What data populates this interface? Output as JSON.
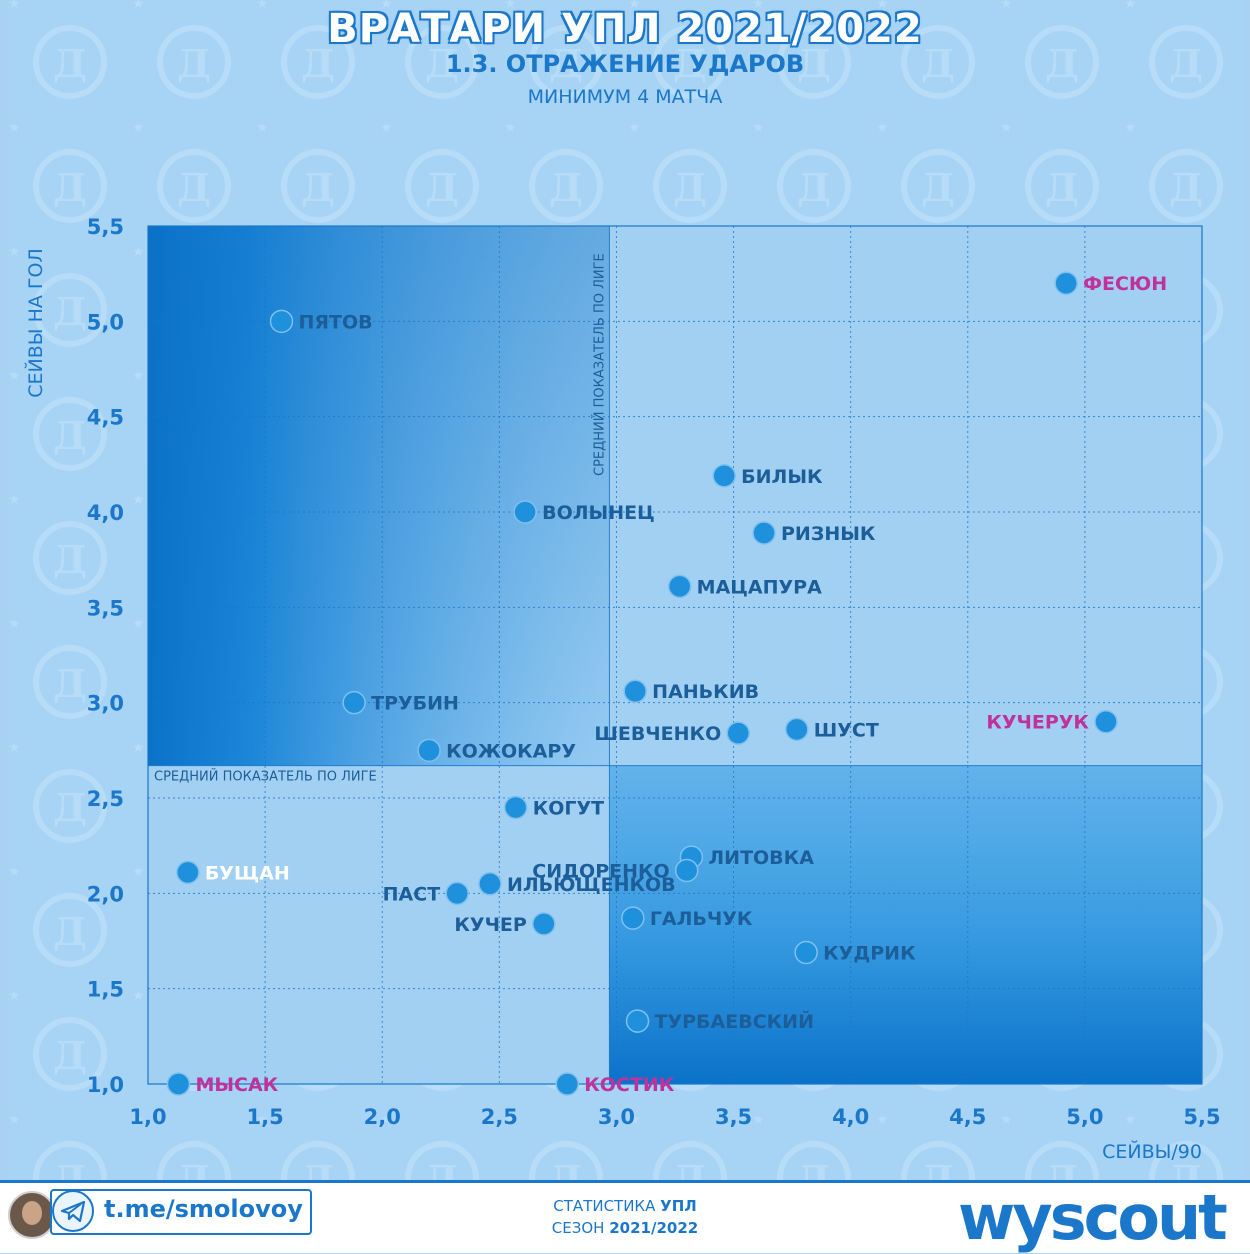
{
  "header": {
    "title": "ВРАТАРИ УПЛ 2021/2022",
    "subtitle": "1.3. ОТРАЖЕНИЕ УДАРОВ",
    "note": "МИНИМУМ 4 МАТЧА"
  },
  "colors": {
    "accent": "#1b77c9",
    "point": "#1e90dc",
    "label_default": "#1b5e99",
    "label_highlight": "#c0329b",
    "label_light": "#ffffff",
    "background": "#a7d3f4"
  },
  "chart_data": {
    "type": "scatter",
    "xlabel": "СЕЙВЫ/90",
    "ylabel": "СЕЙВЫ НА ГОЛ",
    "xlim": [
      1.0,
      5.5
    ],
    "ylim": [
      1.0,
      5.5
    ],
    "xticks": [
      "1,0",
      "1,5",
      "2,0",
      "2,5",
      "3,0",
      "3,5",
      "4,0",
      "4,5",
      "5,0",
      "5,5"
    ],
    "yticks": [
      "1,0",
      "1,5",
      "2,0",
      "2,5",
      "3,0",
      "3,5",
      "4,0",
      "4,5",
      "5,0",
      "5,5"
    ],
    "grid": true,
    "league_average": {
      "x": 2.97,
      "y": 2.67,
      "x_label": "СРЕДНИЙ ПОКАЗАТЕЛЬ ПО ЛИГЕ",
      "y_label": "СРЕДНИЙ ПОКАЗАТЕЛЬ ПО ЛИГЕ"
    },
    "points": [
      {
        "name": "ФЕСЮН",
        "x": 4.92,
        "y": 5.2,
        "style": "highlight",
        "side": "right"
      },
      {
        "name": "ПЯТОВ",
        "x": 1.57,
        "y": 5.0,
        "style": "default",
        "side": "right"
      },
      {
        "name": "БИЛЫК",
        "x": 3.46,
        "y": 4.19,
        "style": "default",
        "side": "right"
      },
      {
        "name": "ВОЛЫНЕЦ",
        "x": 2.61,
        "y": 4.0,
        "style": "default",
        "side": "right"
      },
      {
        "name": "РИЗНЫК",
        "x": 3.63,
        "y": 3.89,
        "style": "default",
        "side": "right"
      },
      {
        "name": "МАЦАПУРА",
        "x": 3.27,
        "y": 3.61,
        "style": "default",
        "side": "right"
      },
      {
        "name": "ПАНЬКИВ",
        "x": 3.08,
        "y": 3.06,
        "style": "default",
        "side": "right"
      },
      {
        "name": "ТРУБИН",
        "x": 1.88,
        "y": 3.0,
        "style": "default",
        "side": "right"
      },
      {
        "name": "ШУСТ",
        "x": 3.77,
        "y": 2.86,
        "style": "default",
        "side": "right"
      },
      {
        "name": "ШЕВЧЕНКО",
        "x": 3.52,
        "y": 2.84,
        "style": "default",
        "side": "left"
      },
      {
        "name": "КУЧЕРУК",
        "x": 5.09,
        "y": 2.9,
        "style": "highlight",
        "side": "left"
      },
      {
        "name": "КОЖОКАРУ",
        "x": 2.2,
        "y": 2.75,
        "style": "default",
        "side": "right"
      },
      {
        "name": "КОГУТ",
        "x": 2.57,
        "y": 2.45,
        "style": "default",
        "side": "right"
      },
      {
        "name": "ЛИТОВКА",
        "x": 3.32,
        "y": 2.19,
        "style": "default",
        "side": "right"
      },
      {
        "name": "СИДОРЕНКО",
        "x": 3.3,
        "y": 2.12,
        "style": "default",
        "side": "left"
      },
      {
        "name": "БУЩАН",
        "x": 1.17,
        "y": 2.11,
        "style": "light",
        "side": "right"
      },
      {
        "name": "ИЛЬЮЩЕНКОВ",
        "x": 2.46,
        "y": 2.05,
        "style": "default",
        "side": "right"
      },
      {
        "name": "ПАСТ",
        "x": 2.32,
        "y": 2.0,
        "style": "default",
        "side": "left"
      },
      {
        "name": "ГАЛЬЧУК",
        "x": 3.07,
        "y": 1.87,
        "style": "default",
        "side": "right"
      },
      {
        "name": "КУЧЕР",
        "x": 2.69,
        "y": 1.84,
        "style": "default",
        "side": "left"
      },
      {
        "name": "КУДРИК",
        "x": 3.81,
        "y": 1.69,
        "style": "default",
        "side": "right"
      },
      {
        "name": "ТУРБАЕВСКИЙ",
        "x": 3.09,
        "y": 1.33,
        "style": "default",
        "side": "right"
      },
      {
        "name": "МЫСАК",
        "x": 1.13,
        "y": 1.0,
        "style": "highlight",
        "side": "right"
      },
      {
        "name": "КОСТИК",
        "x": 2.79,
        "y": 1.0,
        "style": "highlight",
        "side": "right"
      }
    ]
  },
  "footer": {
    "telegram": "t.me/smolovoy",
    "stats_prefix": "СТАТИСТИКА ",
    "stats_league": "УПЛ",
    "season_prefix": "СЕЗОН ",
    "season_value": "2021/2022",
    "brand": "wyscout"
  }
}
